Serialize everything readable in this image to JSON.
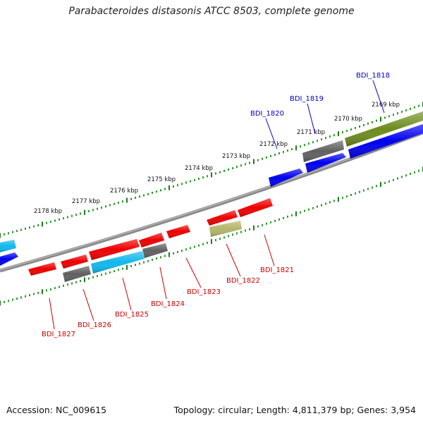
{
  "title": "Parabacteroides distasonis ATCC 8503, complete genome",
  "footer": {
    "accession": "Accession: NC_009615",
    "summary": "Topology: circular; Length: 4,811,379 bp; Genes: 3,954"
  },
  "colors": {
    "backbone": "#8a8a8a",
    "tick": "#2a9a2a",
    "tick_major": "#1f7a1f",
    "red": "#ee0000",
    "blue": "#0000ee",
    "cyan": "#10b8ee",
    "gray": "#606060",
    "olive": "#6e8c1e",
    "khaki": "#b5b56a",
    "label_forward": "#0000cc",
    "label_reverse": "#cc0000"
  },
  "kbp_labels": [
    "2169 kbp",
    "2170 kbp",
    "2171 kbp",
    "2172 kbp",
    "2173 kbp",
    "2174 kbp",
    "2175 kbp",
    "2176 kbp",
    "2177 kbp",
    "2178 kbp"
  ],
  "genes_forward": [
    {
      "label": "BDI_1818",
      "color": "blue"
    },
    {
      "label": "BDI_1819",
      "color": "blue"
    },
    {
      "label": "BDI_1820",
      "color": "blue"
    }
  ],
  "genes_reverse": [
    {
      "label": "BDI_1821",
      "color": "red"
    },
    {
      "label": "BDI_1822",
      "color": "red"
    },
    {
      "label": "BDI_1823",
      "color": "red"
    },
    {
      "label": "BDI_1824",
      "color": "red"
    },
    {
      "label": "BDI_1825",
      "color": "red"
    },
    {
      "label": "BDI_1826",
      "color": "red"
    },
    {
      "label": "BDI_1827",
      "color": "red"
    }
  ]
}
